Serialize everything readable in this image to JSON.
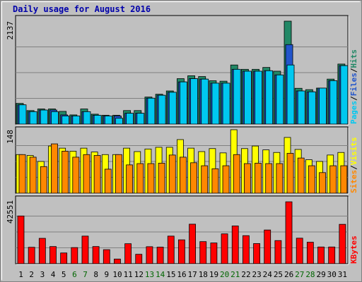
{
  "title": "Daily usage for August 2016",
  "chart_data": {
    "type": "bar",
    "categories": [
      "1",
      "2",
      "3",
      "4",
      "5",
      "6",
      "7",
      "8",
      "9",
      "10",
      "11",
      "12",
      "13",
      "14",
      "15",
      "16",
      "17",
      "18",
      "19",
      "20",
      "21",
      "22",
      "23",
      "24",
      "25",
      "26",
      "27",
      "28",
      "29",
      "30",
      "31"
    ],
    "weekend_days": [
      "6",
      "7",
      "13",
      "14",
      "20",
      "21",
      "27",
      "28"
    ],
    "colors": {
      "weekday_label": "#000000",
      "weekend_label": "#006600"
    },
    "panels": [
      {
        "id": "hits-files-pages",
        "max_label": "2137",
        "ylim": [
          0,
          2137
        ],
        "legend_words": [
          "Pages",
          "Files",
          "Hits"
        ],
        "legend_separator": "/",
        "series": [
          {
            "name": "Hits",
            "color": "#228866",
            "values": [
              430,
              281,
              314,
              314,
              264,
              191,
              314,
              206,
              183,
              183,
              281,
              281,
              561,
              620,
              688,
              943,
              1003,
              987,
              900,
              891,
              1227,
              1137,
              1137,
              1176,
              1098,
              2137,
              743,
              715,
              747,
              934,
              1246
            ]
          },
          {
            "name": "Files",
            "color": "#2255cc",
            "values": [
              400,
              258,
              292,
              292,
              191,
              169,
              258,
              183,
              169,
              169,
              225,
              225,
              538,
              598,
              661,
              876,
              943,
              934,
              850,
              850,
              1137,
              1098,
              1098,
              1108,
              1021,
              1650,
              688,
              670,
              747,
              901,
              1214
            ]
          },
          {
            "name": "Pages",
            "color": "#00c8f0",
            "values": [
              400,
              258,
              292,
              258,
              169,
              169,
              258,
              183,
              169,
              122,
              225,
              225,
              538,
              598,
              661,
              876,
              943,
              934,
              850,
              850,
              1137,
              1098,
              1098,
              1108,
              1021,
              1227,
              688,
              670,
              747,
              901,
              1214
            ]
          }
        ]
      },
      {
        "id": "visits-sites",
        "max_label": "148",
        "ylim": [
          0,
          148
        ],
        "legend_words": [
          "Sites",
          "Visits"
        ],
        "legend_separator": "/",
        "series": [
          {
            "name": "Visits",
            "color": "#ffff00",
            "values": [
              90,
              88,
              74,
              110,
              105,
              98,
              105,
              96,
              90,
              90,
              105,
              97,
              103,
              107,
              107,
              125,
              105,
              97,
              104,
              94,
              148,
              104,
              110,
              101,
              95,
              130,
              102,
              78,
              74,
              89,
              95
            ]
          },
          {
            "name": "Sites",
            "color": "#ff8800",
            "values": [
              90,
              84,
              62,
              115,
              98,
              84,
              90,
              88,
              56,
              90,
              66,
              69,
              69,
              70,
              89,
              84,
              71,
              64,
              57,
              64,
              90,
              69,
              70,
              69,
              69,
              93,
              82,
              64,
              48,
              64,
              64
            ]
          }
        ]
      },
      {
        "id": "kbytes",
        "max_label": "42551",
        "ylim": [
          0,
          42551
        ],
        "legend_words": [
          "KBytes"
        ],
        "legend_separator": "",
        "series": [
          {
            "name": "KBytes",
            "color": "#ff0000",
            "values": [
              32000,
              11000,
              17000,
              11500,
              7200,
              10800,
              18500,
              11500,
              9400,
              3100,
              13400,
              6300,
              11400,
              11100,
              18500,
              16000,
              26500,
              14800,
              13900,
              20000,
              25300,
              18800,
              13500,
              22600,
              15500,
              41500,
              17100,
              14400,
              11200,
              11200,
              26400
            ]
          }
        ]
      }
    ]
  }
}
